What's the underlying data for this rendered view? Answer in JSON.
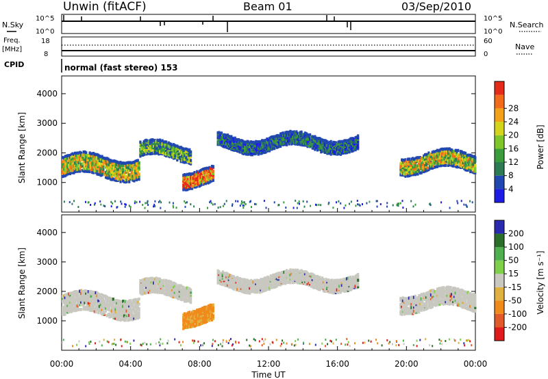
{
  "header": {
    "station": "Unwin (fitACF)",
    "beam": "Beam 01",
    "date": "03/Sep/2010"
  },
  "summary": {
    "nsky_label": "N.Sky",
    "nsky_ticks": [
      "10^5",
      "10^0"
    ],
    "nsearch_label": "N.Search",
    "freq_label_line1": "Freq.",
    "freq_label_line2": "[MHz]",
    "freq_ticks": [
      "18",
      "8"
    ],
    "nave_label": "Nave",
    "nave_ticks": [
      "60",
      "0"
    ],
    "cpid_label": "CPID",
    "cpid_text": "normal (fast stereo) 153"
  },
  "chart_data": [
    {
      "type": "heatmap",
      "title": "",
      "ylabel": "Slant Range [km]",
      "ylim": [
        0,
        4600
      ],
      "yticks": [
        1000,
        2000,
        3000,
        4000
      ],
      "colorbar_label": "Power [dB]",
      "colorbar_ticks": [
        "4",
        "8",
        "12",
        "16",
        "20",
        "24",
        "28"
      ],
      "colors": [
        "#1c1ce6",
        "#2147b0",
        "#2d7a55",
        "#3a9c3a",
        "#7fc62a",
        "#d4d41c",
        "#f2a21a",
        "#f26b1a",
        "#e62a1a"
      ],
      "echo_bands": [
        {
          "t_start": 0.0,
          "t_end": 4.5,
          "range_center": 1500,
          "range_width": 700,
          "level": "high"
        },
        {
          "t_start": 4.5,
          "t_end": 7.5,
          "range_center": 2000,
          "range_width": 500,
          "level": "medium"
        },
        {
          "t_start": 7.0,
          "t_end": 8.8,
          "range_center": 1150,
          "range_width": 550,
          "level": "very-high"
        },
        {
          "t_start": 9.0,
          "t_end": 17.2,
          "range_center": 2300,
          "range_width": 450,
          "level": "low"
        },
        {
          "t_start": 19.6,
          "t_end": 24.0,
          "range_center": 1650,
          "range_width": 600,
          "level": "high"
        }
      ]
    },
    {
      "type": "heatmap",
      "title": "",
      "xlabel": "Time UT",
      "ylabel": "Slant Range [km]",
      "ylim": [
        0,
        4600
      ],
      "yticks": [
        1000,
        2000,
        3000,
        4000
      ],
      "xticks": [
        "00:00",
        "04:00",
        "08:00",
        "12:00",
        "16:00",
        "20:00",
        "00:00"
      ],
      "colorbar_label": "Velocity [m s⁻¹]",
      "colorbar_ticks": [
        "200",
        "100",
        "50",
        "15",
        "-15",
        "-50",
        "-100",
        "-200"
      ],
      "colors": [
        "#2a2ab0",
        "#2a6e2a",
        "#4fb04f",
        "#7ed04a",
        "#c8c8c0",
        "#e0b040",
        "#f08a1a",
        "#e05a2a",
        "#e01a1a"
      ],
      "echo_bands": [
        {
          "t_start": 0.0,
          "t_end": 4.5,
          "range_center": 1500,
          "range_width": 700,
          "velocity": "ground-scatter"
        },
        {
          "t_start": 4.5,
          "t_end": 7.5,
          "range_center": 2000,
          "range_width": 500,
          "velocity": "ground-scatter"
        },
        {
          "t_start": 7.0,
          "t_end": 8.8,
          "range_center": 1150,
          "range_width": 550,
          "velocity": "-50"
        },
        {
          "t_start": 9.0,
          "t_end": 17.2,
          "range_center": 2300,
          "range_width": 450,
          "velocity": "ground-scatter"
        },
        {
          "t_start": 19.6,
          "t_end": 24.0,
          "range_center": 1650,
          "range_width": 600,
          "velocity": "ground-scatter"
        }
      ]
    }
  ]
}
